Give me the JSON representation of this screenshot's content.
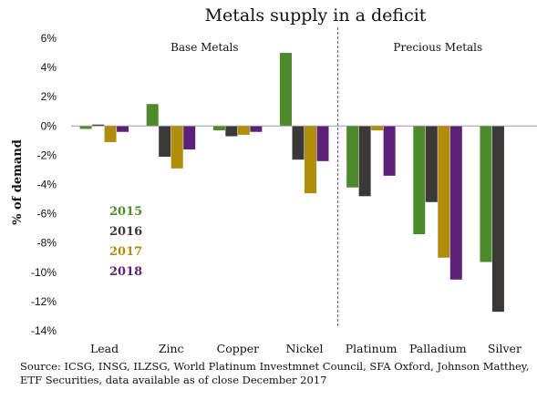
{
  "chart_data": {
    "type": "bar",
    "title": "Metals supply in a deficit",
    "ylabel": "% of demand",
    "xlabel": "",
    "ylim": [
      -14,
      6
    ],
    "yticks": [
      -14,
      -12,
      -10,
      -8,
      -6,
      -4,
      -2,
      0,
      2,
      4,
      6
    ],
    "ytick_labels": [
      "-14%",
      "-12%",
      "-10%",
      "-8%",
      "-6%",
      "-4%",
      "-2%",
      "0%",
      "2%",
      "4%",
      "6%"
    ],
    "categories": [
      "Lead",
      "Zinc",
      "Copper",
      "Nickel",
      "Platinum",
      "Palladium",
      "Silver"
    ],
    "groups": [
      {
        "label": "Base Metals",
        "categories": [
          "Lead",
          "Zinc",
          "Copper",
          "Nickel"
        ]
      },
      {
        "label": "Precious Metals",
        "categories": [
          "Platinum",
          "Palladium",
          "Silver"
        ]
      }
    ],
    "series": [
      {
        "name": "2015",
        "color": "#4e8a2a",
        "values": [
          -0.2,
          1.5,
          -0.3,
          5.0,
          -4.2,
          -7.4,
          -9.3
        ]
      },
      {
        "name": "2016",
        "color": "#3b3838",
        "values": [
          0.1,
          -2.1,
          -0.7,
          -2.3,
          -4.8,
          -5.2,
          -12.7
        ]
      },
      {
        "name": "2017",
        "color": "#b08d0b",
        "values": [
          -1.1,
          -2.9,
          -0.6,
          -4.6,
          -0.3,
          -9.0,
          0
        ]
      },
      {
        "name": "2018",
        "color": "#5c2178",
        "values": [
          -0.4,
          -1.6,
          -0.4,
          -2.4,
          -3.4,
          -10.5,
          0
        ]
      }
    ],
    "legend_placement": "center-left",
    "grid": false,
    "divider_after": "Nickel",
    "divider_color": "#7a3a99"
  },
  "source_lines": [
    "Source: ICSG, INSG, ILZSG, World Platinum Investmnet Council, SFA Oxford, Johnson Matthey,",
    "ETF Securities, data available as of close December 2017"
  ]
}
